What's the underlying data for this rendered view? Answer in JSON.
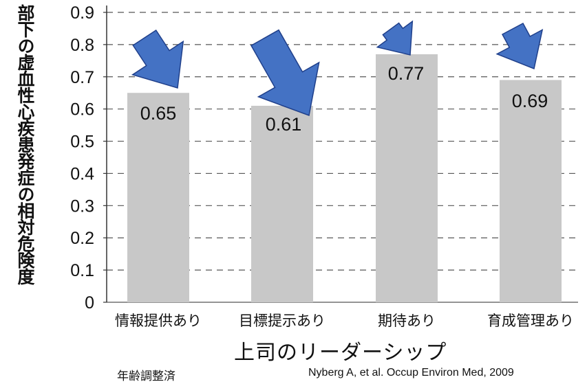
{
  "chart_data": {
    "type": "bar",
    "categories": [
      "情報提供あり",
      "目標提示あり",
      "期待あり",
      "育成管理あり"
    ],
    "values": [
      0.65,
      0.61,
      0.77,
      0.69
    ],
    "value_labels": [
      "0.65",
      "0.61",
      "0.77",
      "0.69"
    ],
    "ylabel": "部下の虚血性心疾患発症の相対危険度",
    "xlabel": "上司のリーダーシップ",
    "ylim": [
      0,
      0.9
    ],
    "yticks": [
      "0",
      "0.1",
      "0.2",
      "0.3",
      "0.4",
      "0.5",
      "0.6",
      "0.7",
      "0.8",
      "0.9"
    ],
    "grid": true,
    "bar_color": "#c8c8c8",
    "arrow_color": "#4472c4"
  },
  "notes": {
    "adjusted": "年齢調整済",
    "source": "Nyberg A, et al. Occup Environ Med, 2009"
  }
}
